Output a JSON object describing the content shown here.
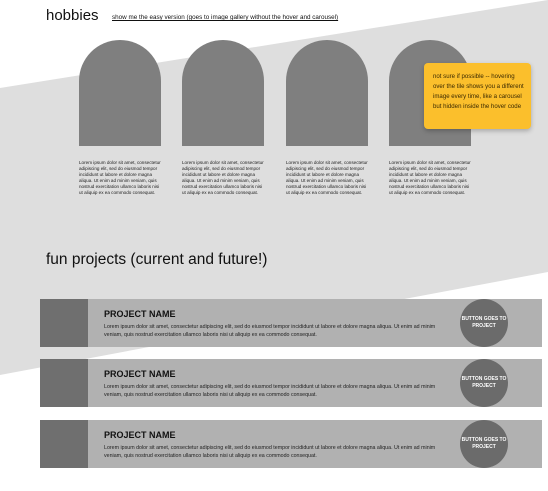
{
  "hobbies": {
    "title": "hobbies",
    "easy_link": "show me the easy version (goes to image gallery without the hover and carousel)",
    "tiles": [
      {
        "text": "Lorem ipsum dolor sit amet, consectetur adipiscing elit, sed do eiusmod tempor incididunt ut labore et dolore magna aliqua. Ut enim ad minim veniam, quis nostrud exercitation ullamco laboris nisi ut aliquip ex ea commodo consequat."
      },
      {
        "text": "Lorem ipsum dolor sit amet, consectetur adipiscing elit, sed do eiusmod tempor incididunt ut labore et dolore magna aliqua. Ut enim ad minim veniam, quis nostrud exercitation ullamco laboris nisi ut aliquip ex ea commodo consequat."
      },
      {
        "text": "Lorem ipsum dolor sit amet, consectetur adipiscing elit, sed do eiusmod tempor incididunt ut labore et dolore magna aliqua. Ut enim ad minim veniam, quis nostrud exercitation ullamco laboris nisi ut aliquip ex ea commodo consequat."
      },
      {
        "text": "Lorem ipsum dolor sit amet, consectetur adipiscing elit, sed do eiusmod tempor incididunt ut labore et dolore magna aliqua. Ut enim ad minim veniam, quis nostrud exercitation ullamco laboris nisi ut aliquip ex ea commodo consequat."
      }
    ],
    "note": "not sure if possible -- hovering over the tile shows you a different image every time, like a carousel but hidden inside the hover code"
  },
  "projects": {
    "title": "fun projects (current and future!)",
    "items": [
      {
        "name": "PROJECT NAME",
        "desc": "Lorem ipsum dolor sit amet, consectetur adipiscing elit, sed do eiusmod tempor incididunt ut labore et dolore magna aliqua. Ut enim ad minim veniam, quis nostrud exercitation ullamco laboris nisi ut aliquip ex ea commodo consequat.",
        "button": "BUTTON GOES TO PROJECT"
      },
      {
        "name": "PROJECT NAME",
        "desc": "Lorem ipsum dolor sit amet, consectetur adipiscing elit, sed do eiusmod tempor incididunt ut labore et dolore magna aliqua. Ut enim ad minim veniam, quis nostrud exercitation ullamco laboris nisi ut aliquip ex ea commodo consequat.",
        "button": "BUTTON GOES TO PROJECT"
      },
      {
        "name": "PROJECT NAME",
        "desc": "Lorem ipsum dolor sit amet, consectetur adipiscing elit, sed do eiusmod tempor incididunt ut labore et dolore magna aliqua. Ut enim ad minim veniam, quis nostrud exercitation ullamco laboris nisi ut aliquip ex ea commodo consequat.",
        "button": "BUTTON GOES TO PROJECT"
      }
    ]
  },
  "colors": {
    "band": "#dedede",
    "tile": "#7f7f7f",
    "note": "#fbbf2c",
    "project_bar": "#b1b1b1",
    "project_thumb": "#6f6f6f",
    "project_button": "#6b6b6b"
  }
}
